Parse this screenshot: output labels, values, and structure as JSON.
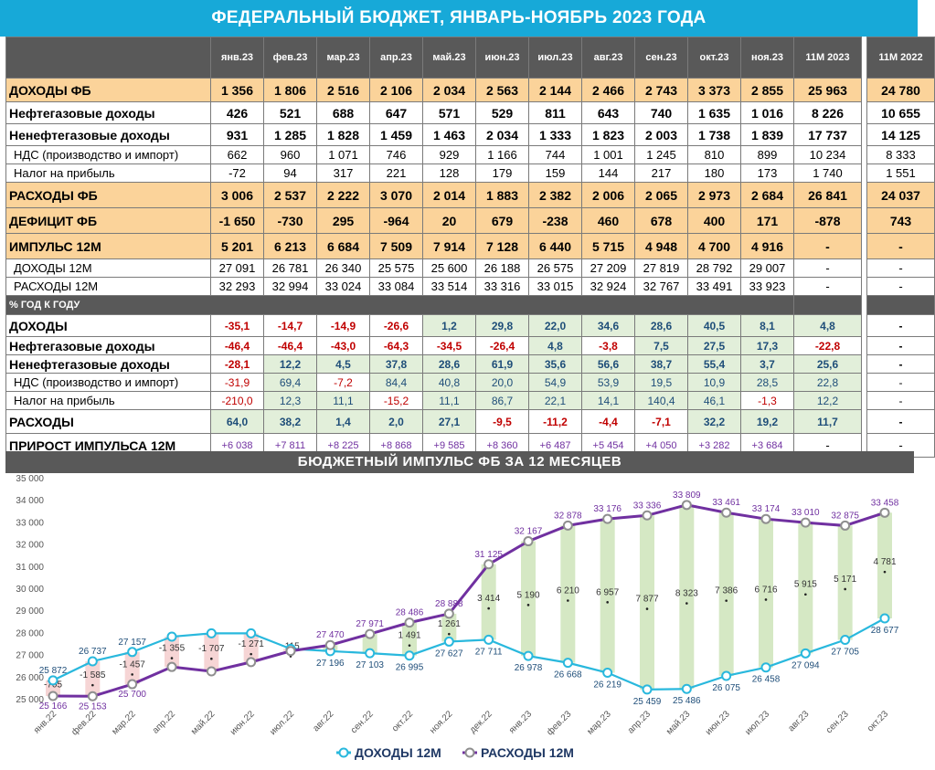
{
  "title": "ФЕДЕРАЛЬНЫЙ БЮДЖЕТ, ЯНВАРЬ-НОЯБРЬ 2023 ГОДА",
  "table": {
    "months": [
      "янв.23",
      "фев.23",
      "мар.23",
      "апр.23",
      "май.23",
      "июн.23",
      "июл.23",
      "авг.23",
      "сен.23",
      "окт.23",
      "ноя.23"
    ],
    "total_headers": [
      "11М 2023",
      "11М 2022"
    ],
    "rows": [
      {
        "label": "ДОХОДЫ ФБ",
        "style": "orange-bold",
        "values": [
          "1 356",
          "1 806",
          "2 516",
          "2 106",
          "2 034",
          "2 563",
          "2 144",
          "2 466",
          "2 743",
          "3 373",
          "2 855"
        ],
        "totals": [
          "25 963",
          "24 780"
        ]
      },
      {
        "label": "Нефтегазовые доходы",
        "style": "bold",
        "values": [
          "426",
          "521",
          "688",
          "647",
          "571",
          "529",
          "811",
          "643",
          "740",
          "1 635",
          "1 016"
        ],
        "totals": [
          "8 226",
          "10 655"
        ]
      },
      {
        "label": "Ненефтегазовые доходы",
        "style": "bold",
        "values": [
          "931",
          "1 285",
          "1 828",
          "1 459",
          "1 463",
          "2 034",
          "1 333",
          "1 823",
          "2 003",
          "1 738",
          "1 839"
        ],
        "totals": [
          "17 737",
          "14 125"
        ]
      },
      {
        "label": "НДС (производство и импорт)",
        "style": "sub",
        "values": [
          "662",
          "960",
          "1 071",
          "746",
          "929",
          "1 166",
          "744",
          "1 001",
          "1 245",
          "810",
          "899"
        ],
        "totals": [
          "10 234",
          "8 333"
        ]
      },
      {
        "label": "Налог на прибыль",
        "style": "sub",
        "values": [
          "-72",
          "94",
          "317",
          "221",
          "128",
          "179",
          "159",
          "144",
          "217",
          "180",
          "173"
        ],
        "totals": [
          "1 740",
          "1 551"
        ]
      },
      {
        "label": "РАСХОДЫ ФБ",
        "style": "orange-bold",
        "values": [
          "3 006",
          "2 537",
          "2 222",
          "3 070",
          "2 014",
          "1 883",
          "2 382",
          "2 006",
          "2 065",
          "2 973",
          "2 684"
        ],
        "totals": [
          "26 841",
          "24 037"
        ]
      },
      {
        "label": "ДЕФИЦИТ ФБ",
        "style": "orange-bold",
        "values": [
          "-1 650",
          "-730",
          "295",
          "-964",
          "20",
          "679",
          "-238",
          "460",
          "678",
          "400",
          "171"
        ],
        "totals": [
          "-878",
          "743"
        ]
      },
      {
        "label": "ИМПУЛЬС 12М",
        "style": "orange-bold",
        "values": [
          "5 201",
          "6 213",
          "6 684",
          "7 509",
          "7 914",
          "7 128",
          "6 440",
          "5 715",
          "4 948",
          "4 700",
          "4 916"
        ],
        "totals": [
          "-",
          "-"
        ]
      },
      {
        "label": "ДОХОДЫ 12М",
        "style": "sub",
        "values": [
          "27 091",
          "26 781",
          "26 340",
          "25 575",
          "25 600",
          "26 188",
          "26 575",
          "27 209",
          "27 819",
          "28 792",
          "29 007"
        ],
        "totals": [
          "-",
          "-"
        ]
      },
      {
        "label": "РАСХОДЫ 12М",
        "style": "sub",
        "values": [
          "32 293",
          "32 994",
          "33 024",
          "33 084",
          "33 514",
          "33 316",
          "33 015",
          "32 924",
          "32 767",
          "33 491",
          "33 923"
        ],
        "totals": [
          "-",
          "-"
        ]
      }
    ],
    "section_label": "% ГОД К ГОДУ",
    "pct_rows": [
      {
        "label": "ДОХОДЫ",
        "style": "bold",
        "values": [
          "-35,1",
          "-14,7",
          "-14,9",
          "-26,6",
          "1,2",
          "29,8",
          "22,0",
          "34,6",
          "28,6",
          "40,5",
          "8,1"
        ],
        "totals": [
          "4,8",
          "-"
        ]
      },
      {
        "label": "Нефтегазовые доходы",
        "style": "bold",
        "values": [
          "-46,4",
          "-46,4",
          "-43,0",
          "-64,3",
          "-34,5",
          "-26,4",
          "4,8",
          "-3,8",
          "7,5",
          "27,5",
          "17,3"
        ],
        "totals": [
          "-22,8",
          "-"
        ]
      },
      {
        "label": "Ненефтегазовые доходы",
        "style": "bold",
        "values": [
          "-28,1",
          "12,2",
          "4,5",
          "37,8",
          "28,6",
          "61,9",
          "35,6",
          "56,6",
          "38,7",
          "55,4",
          "3,7"
        ],
        "totals": [
          "25,6",
          "-"
        ]
      },
      {
        "label": "НДС (производство и импорт)",
        "style": "sub",
        "values": [
          "-31,9",
          "69,4",
          "-7,2",
          "84,4",
          "40,8",
          "20,0",
          "54,9",
          "53,9",
          "19,5",
          "10,9",
          "28,5"
        ],
        "totals": [
          "22,8",
          "-"
        ]
      },
      {
        "label": "Налог на прибыль",
        "style": "sub",
        "values": [
          "-210,0",
          "12,3",
          "11,1",
          "-15,2",
          "11,1",
          "86,7",
          "22,1",
          "14,1",
          "140,4",
          "46,1",
          "-1,3"
        ],
        "totals": [
          "12,2",
          "-"
        ]
      },
      {
        "label": "РАСХОДЫ",
        "style": "bold",
        "values": [
          "64,0",
          "38,2",
          "1,4",
          "2,0",
          "27,1",
          "-9,5",
          "-11,2",
          "-4,4",
          "-7,1",
          "32,2",
          "19,2"
        ],
        "totals": [
          "11,7",
          "-"
        ]
      }
    ],
    "impulse_growth": {
      "label": "ПРИРОСТ ИМПУЛЬСА 12М",
      "values": [
        "+6 038",
        "+7 811",
        "+8 225",
        "+8 868",
        "+9 585",
        "+8 360",
        "+6 487",
        "+5 454",
        "+4 050",
        "+3 282",
        "+3 684"
      ],
      "totals": [
        "-",
        "-"
      ]
    }
  },
  "chart_title": "БЮДЖЕТНЫЙ ИМПУЛЬС ФБ ЗА 12 МЕСЯЦЕВ",
  "chart_data": {
    "type": "line",
    "categories": [
      "янв.22",
      "фев.22",
      "мар.22",
      "апр.22",
      "май.22",
      "июн.22",
      "июл.22",
      "авг.22",
      "сен.22",
      "окт.22",
      "ноя.22",
      "дек.22",
      "янв.23",
      "фев.23",
      "мар.23",
      "апр.23",
      "май.23",
      "июн.23",
      "июл.23",
      "авг.23",
      "сен.23",
      "окт.23"
    ],
    "series": [
      {
        "name": "ДОХОДЫ 12М",
        "color": "#29b8dd",
        "values": [
          25872,
          26737,
          27157,
          27850,
          28000,
          28000,
          27300,
          27196,
          27103,
          26995,
          27627,
          27711,
          26978,
          26668,
          26219,
          25459,
          25486,
          26075,
          26458,
          27094,
          27705,
          28677
        ],
        "labels": [
          "25 872",
          "26 737",
          "27 157",
          "",
          "",
          "",
          "",
          "27 196",
          "27 103",
          "26 995",
          "27 627",
          "27 711",
          "26 978",
          "26 668",
          "26 219",
          "25 459",
          "25 486",
          "26 075",
          "26 458",
          "27 094",
          "27 705",
          "28 677"
        ]
      },
      {
        "name": "РАСХОДЫ 12М",
        "color": "#7030a0",
        "values": [
          25166,
          25153,
          25700,
          26480,
          26280,
          26700,
          27200,
          27470,
          27971,
          28486,
          28888,
          31125,
          32167,
          32878,
          33176,
          33336,
          33809,
          33461,
          33174,
          33010,
          32875,
          33458
        ],
        "labels": [
          "25 166",
          "25 153",
          "25 700",
          "",
          "",
          "",
          "",
          "27 470",
          "27 971",
          "28 486",
          "28 888",
          "31 125",
          "32 167",
          "32 878",
          "33 176",
          "33 336",
          "33 809",
          "33 461",
          "33 174",
          "33 010",
          "32 875",
          "33 458"
        ]
      }
    ],
    "impulse_labels": [
      "-705",
      "-1 585",
      "-1 457",
      "-1 355",
      "-1 707",
      "-1 271",
      "-115",
      "",
      "",
      "1 491",
      "1 261",
      "3 414",
      "5 190",
      "6 210",
      "6 957",
      "7 877",
      "8 323",
      "7 386",
      "6 716",
      "5 915",
      "5 171",
      "4 781"
    ],
    "yticks": [
      "25 000",
      "26 000",
      "27 000",
      "28 000",
      "29 000",
      "30 000",
      "31 000",
      "32 000",
      "33 000",
      "34 000",
      "35 000"
    ],
    "ylim": [
      25000,
      35000
    ],
    "legend_position": "bottom-center"
  }
}
